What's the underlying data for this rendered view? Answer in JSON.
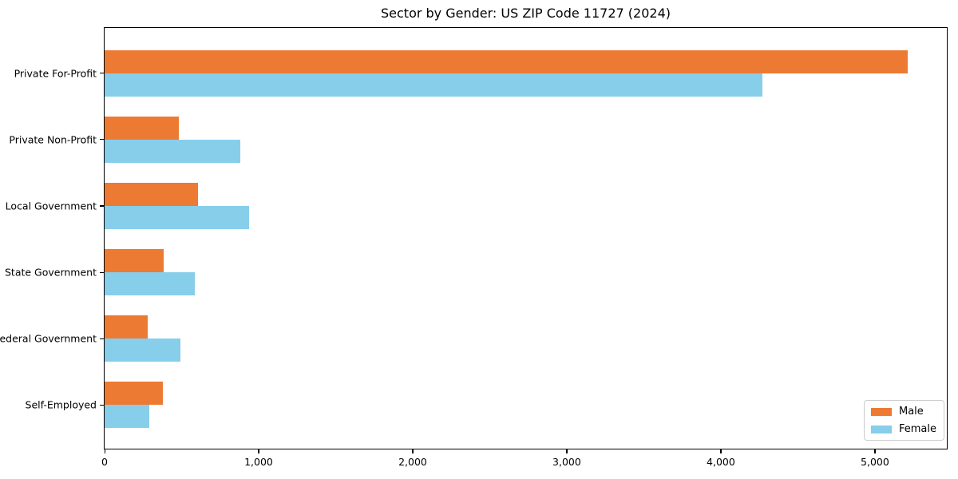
{
  "title": "Sector by Gender: US ZIP Code 11727 (2024)",
  "colors": {
    "male": "#ED7A33",
    "female": "#87CEEB",
    "spine": "#000000",
    "legend_border": "#cccccc",
    "background": "#ffffff"
  },
  "legend": {
    "position": "lower right",
    "items": [
      {
        "label": "Male",
        "color": "#ED7A33"
      },
      {
        "label": "Female",
        "color": "#87CEEB"
      }
    ]
  },
  "chart_data": {
    "type": "bar",
    "orientation": "horizontal",
    "title": "Sector by Gender: US ZIP Code 11727 (2024)",
    "xlabel": "",
    "ylabel": "",
    "categories": [
      "Private For-Profit",
      "Private Non-Profit",
      "Local Government",
      "State Government",
      "Federal Government",
      "Self-Employed"
    ],
    "series": [
      {
        "name": "Male",
        "color": "#ED7A33",
        "values": [
          5210,
          480,
          605,
          385,
          280,
          380
        ]
      },
      {
        "name": "Female",
        "color": "#87CEEB",
        "values": [
          4270,
          880,
          940,
          585,
          490,
          290
        ]
      }
    ],
    "xlim": [
      0,
      5477
    ],
    "xticks": [
      0,
      1000,
      2000,
      3000,
      4000,
      5000
    ],
    "xtick_labels": [
      "0",
      "1,000",
      "2,000",
      "3,000",
      "4,000",
      "5,000"
    ],
    "grid": false,
    "legend_position": "lower right"
  }
}
